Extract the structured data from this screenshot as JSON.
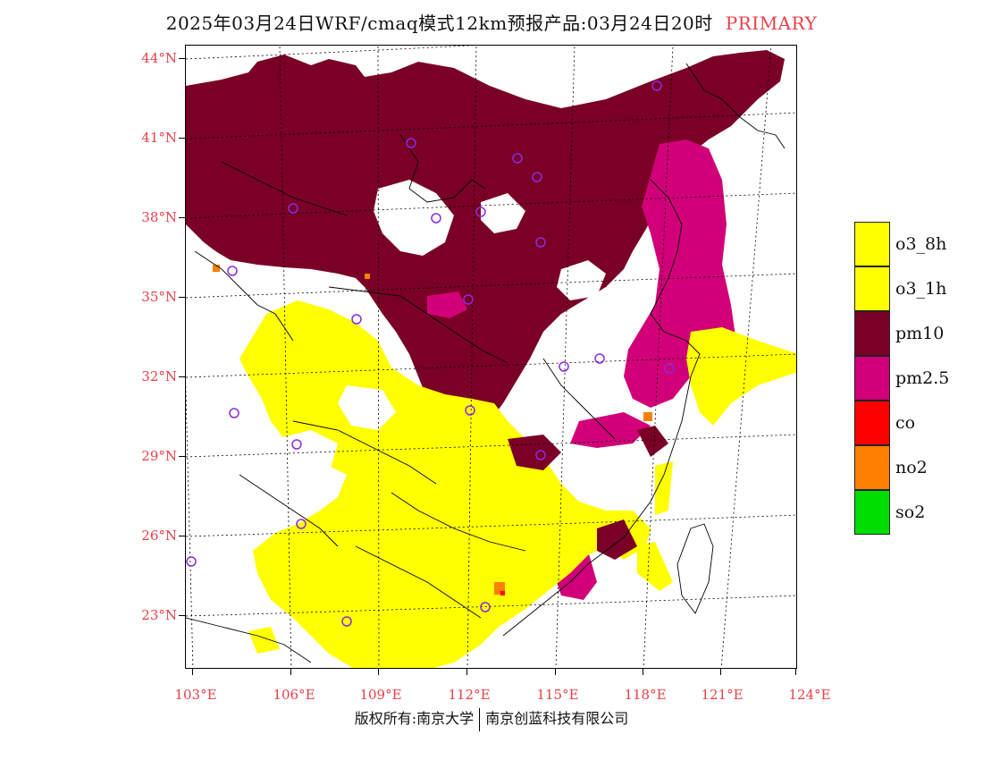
{
  "title": {
    "main": "2025年03月24日WRF/cmaq模式12km预报产品:03月24日20时",
    "tag": "PRIMARY"
  },
  "map": {
    "lat_labels": [
      "44°N",
      "41°N",
      "38°N",
      "35°N",
      "32°N",
      "29°N",
      "26°N",
      "23°N"
    ],
    "lon_labels": [
      "103°E",
      "106°E",
      "109°E",
      "112°E",
      "115°E",
      "118°E",
      "121°E",
      "124°E"
    ],
    "colors": {
      "o3_8h": "#ffff00",
      "o3_1h": "#ffff00",
      "pm10": "#7a0026",
      "pm2_5": "#d10078",
      "co": "#ff0000",
      "no2": "#ff7f00",
      "so2": "#00dd00",
      "station": "#8a2be2",
      "accent": "#e8404a"
    }
  },
  "legend": {
    "items": [
      {
        "label": "o3_8h",
        "color": "#ffff00"
      },
      {
        "label": "o3_1h",
        "color": "#ffff00"
      },
      {
        "label": "pm10",
        "color": "#7a0026"
      },
      {
        "label": "pm2.5",
        "color": "#d10078"
      },
      {
        "label": "co",
        "color": "#ff0000"
      },
      {
        "label": "no2",
        "color": "#ff7f00"
      },
      {
        "label": "so2",
        "color": "#00dd00"
      }
    ]
  },
  "footer": {
    "left": "版权所有:南京大学",
    "right": "南京创蓝科技有限公司"
  }
}
